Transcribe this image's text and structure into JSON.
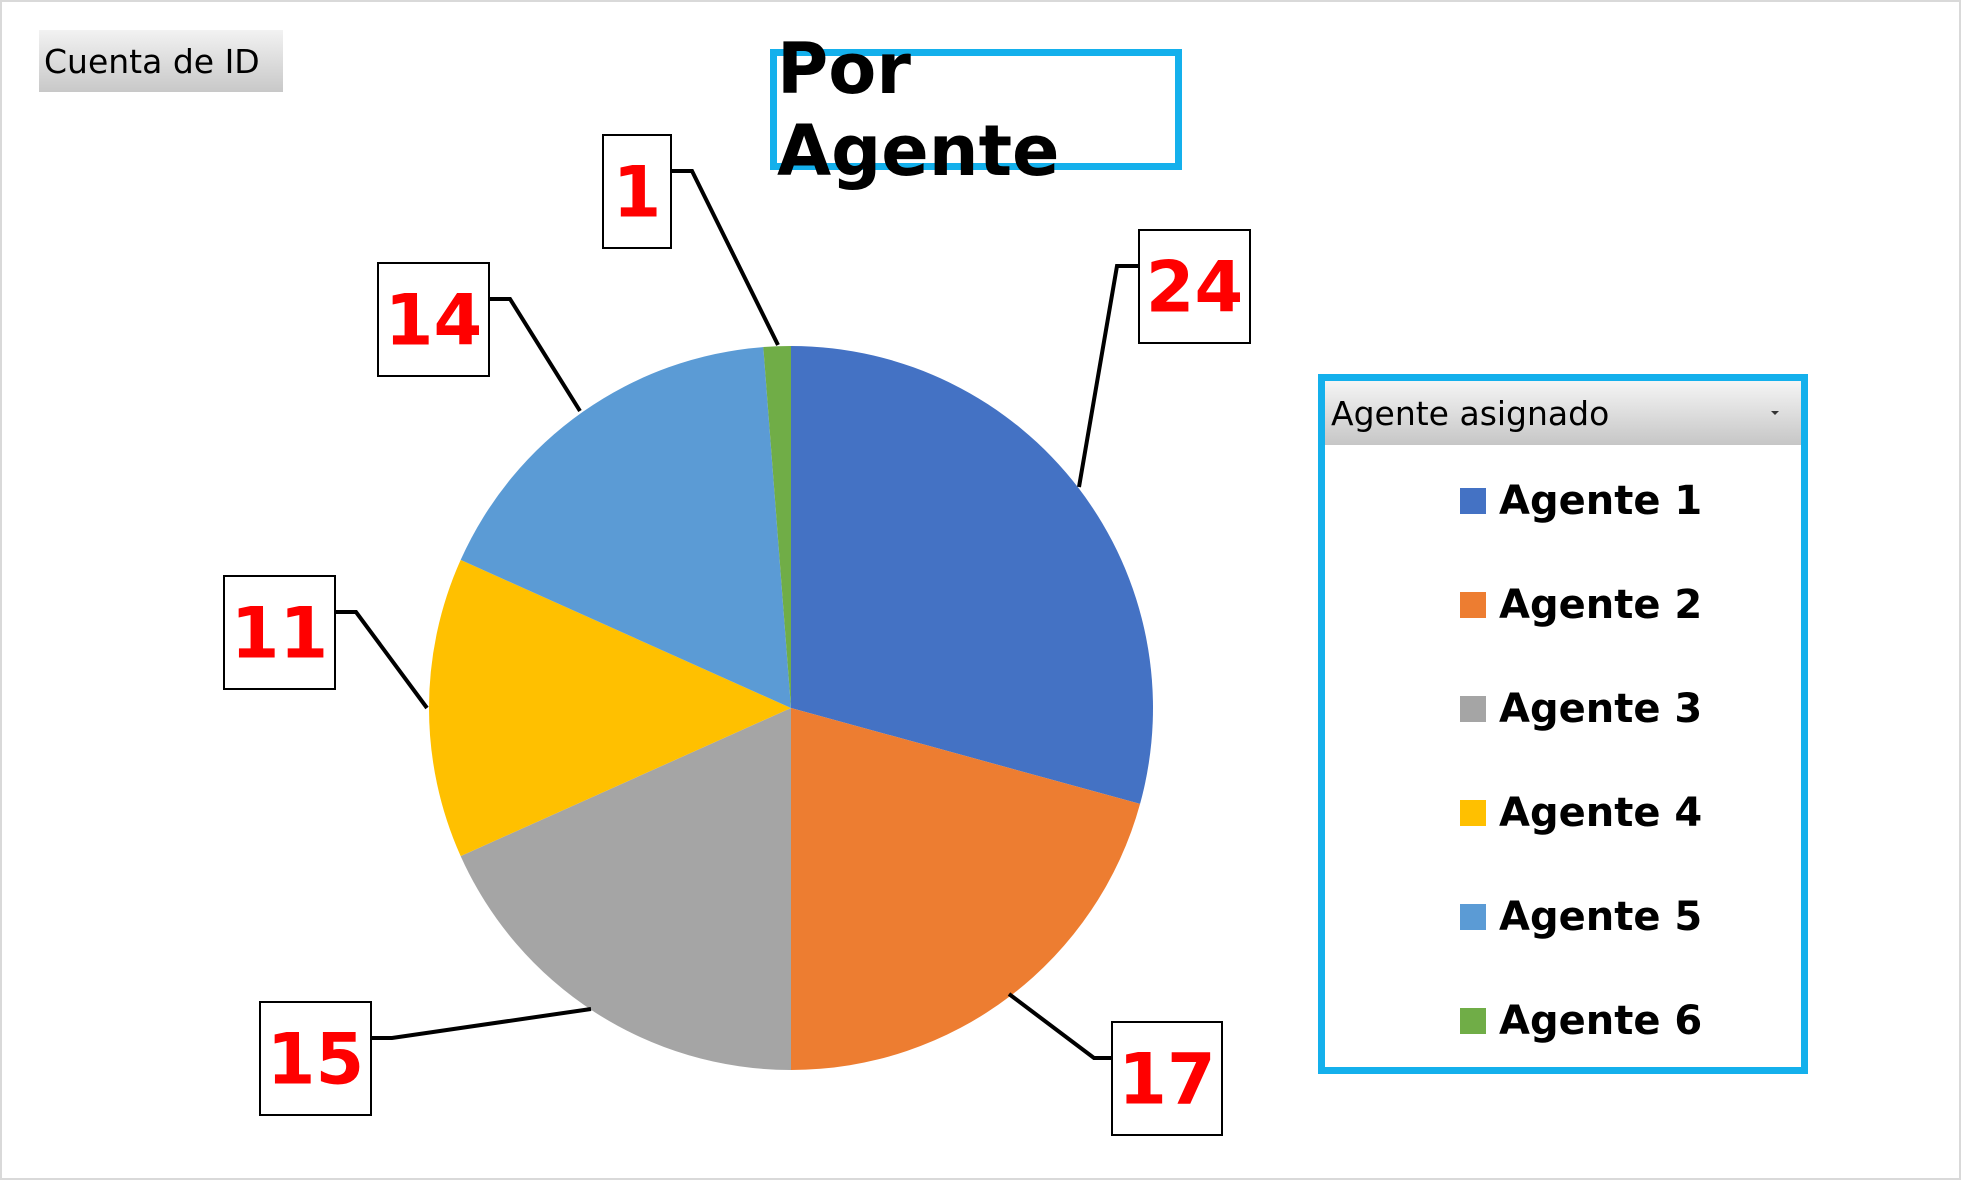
{
  "field_button": {
    "label": "Cuenta de ID"
  },
  "chart_data": {
    "type": "pie",
    "title": "Por Agente",
    "categories": [
      "Agente 1",
      "Agente 2",
      "Agente 3",
      "Agente 4",
      "Agente 5",
      "Agente 6"
    ],
    "values": [
      24,
      17,
      15,
      11,
      14,
      1
    ],
    "colors": [
      "#4472c4",
      "#ed7d31",
      "#a5a5a5",
      "#ffc000",
      "#5b9bd5",
      "#70ad47"
    ],
    "data_labels": [
      "24",
      "17",
      "15",
      "11",
      "14",
      "1"
    ],
    "legend": {
      "title": "Agente asignado",
      "position": "right"
    }
  }
}
